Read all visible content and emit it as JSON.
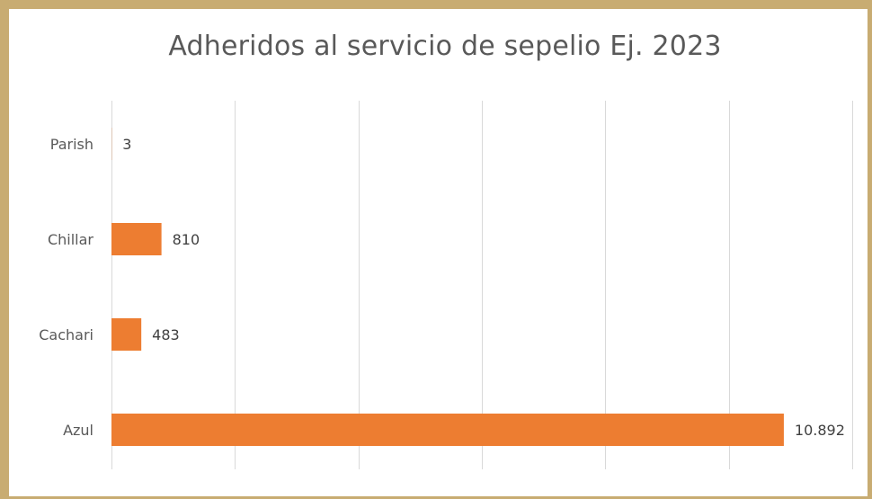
{
  "chart_data": {
    "type": "bar",
    "orientation": "horizontal",
    "title": "Adheridos al servicio de sepelio Ej. 2023",
    "categories": [
      "Parish",
      "Chillar",
      "Cachari",
      "Azul"
    ],
    "values": [
      3,
      810,
      483,
      10892
    ],
    "value_labels": [
      "3",
      "810",
      "483",
      "10.892"
    ],
    "xlim": [
      0,
      12000
    ],
    "grid": true,
    "bar_color": "#ed7d31",
    "legend": "none"
  }
}
